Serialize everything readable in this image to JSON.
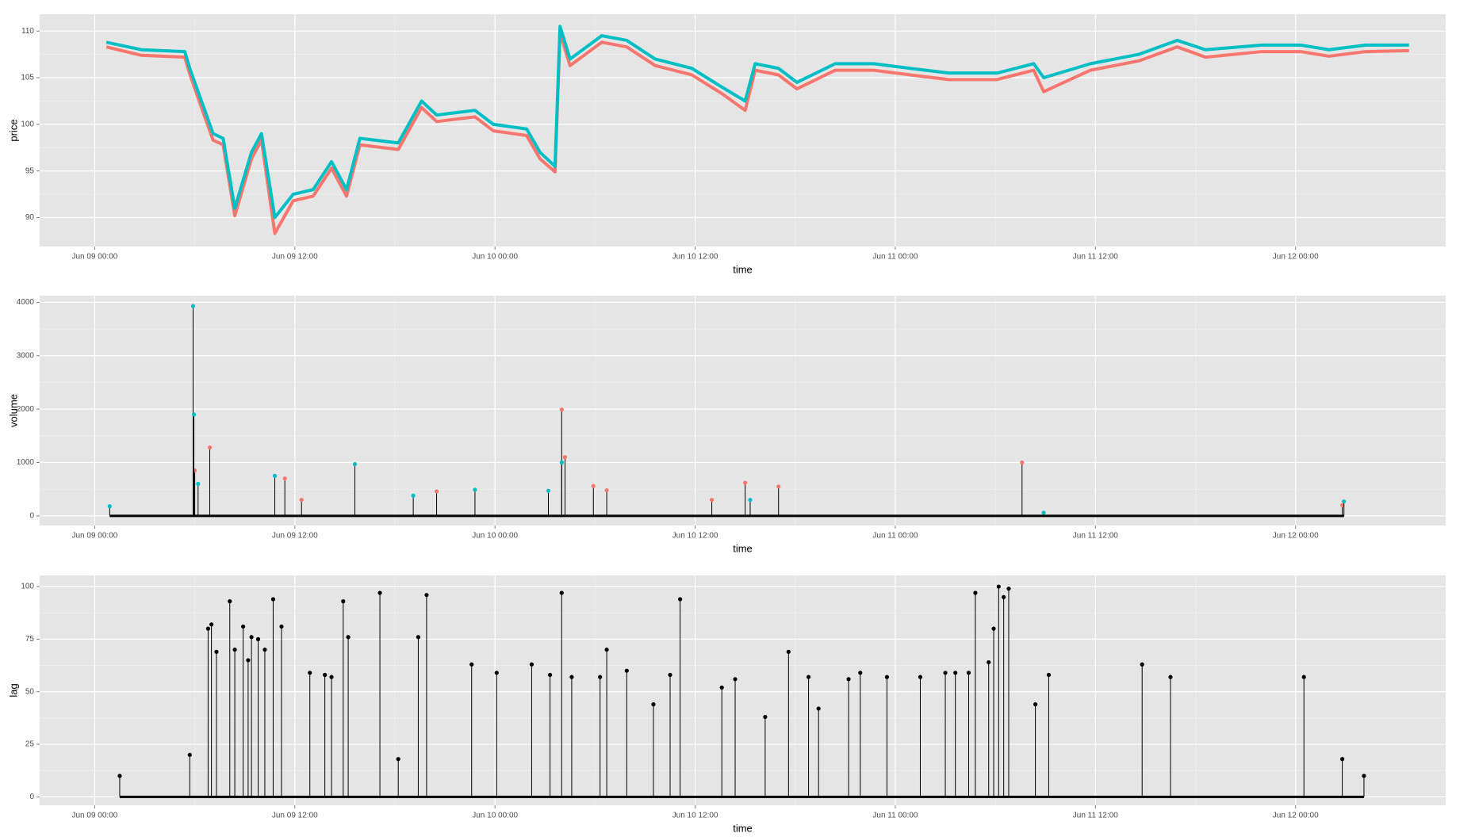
{
  "chart_data": [
    {
      "type": "line",
      "xlabel": "time",
      "ylabel": "price",
      "grid": true,
      "xlim": [
        -3.3,
        81.0
      ],
      "ylim": [
        86.9,
        111.8
      ],
      "xticks": [
        {
          "value": 0,
          "label": "Jun 09 00:00"
        },
        {
          "value": 12,
          "label": "Jun 09 12:00"
        },
        {
          "value": 24,
          "label": "Jun 10 00:00"
        },
        {
          "value": 36,
          "label": "Jun 10 12:00"
        },
        {
          "value": 48,
          "label": "Jun 11 00:00"
        },
        {
          "value": 60,
          "label": "Jun 11 12:00"
        },
        {
          "value": 72,
          "label": "Jun 12 00:00"
        }
      ],
      "yticks": [
        90,
        95,
        100,
        105,
        110
      ],
      "x": [
        0.7,
        2.8,
        5.4,
        5.7,
        6.5,
        7.1,
        7.7,
        8.4,
        9.4,
        10,
        10.8,
        11.9,
        13.1,
        14.2,
        15.1,
        15.9,
        18.2,
        19.6,
        20.5,
        22.8,
        23.9,
        25.9,
        26.7,
        27.6,
        27.9,
        28.5,
        30.4,
        31.9,
        33.6,
        35.8,
        37.6,
        39,
        39.6,
        41,
        42.1,
        44.4,
        46.7,
        48.9,
        51.2,
        54.1,
        56.3,
        56.9,
        59.7,
        62.6,
        64.9,
        66.6,
        70,
        72.3,
        74,
        76.2,
        78.8
      ],
      "series": [
        {
          "color": "#f8766d",
          "values": [
            108.3,
            107.4,
            107.2,
            105.4,
            101.3,
            98.3,
            97.8,
            90.2,
            96.3,
            98.3,
            88.3,
            91.8,
            92.3,
            95.3,
            92.3,
            97.8,
            97.3,
            101.8,
            100.3,
            100.8,
            99.3,
            98.8,
            96.3,
            94.9,
            109.8,
            106.3,
            108.8,
            108.3,
            106.3,
            105.3,
            103.3,
            101.5,
            105.8,
            105.3,
            103.8,
            105.8,
            105.8,
            105.3,
            104.8,
            104.8,
            105.8,
            103.5,
            105.8,
            106.8,
            108.3,
            107.2,
            107.8,
            107.8,
            107.3,
            107.8,
            107.9
          ]
        },
        {
          "color": "#00bfc4",
          "values": [
            108.8,
            108,
            107.8,
            106,
            102,
            99,
            98.5,
            91,
            97,
            99,
            90,
            92.5,
            93,
            96,
            93,
            98.5,
            98,
            102.5,
            101,
            101.5,
            100,
            99.5,
            97,
            95.5,
            110.5,
            107,
            109.5,
            109,
            107,
            106,
            104,
            102.5,
            106.5,
            106,
            104.5,
            106.5,
            106.5,
            106,
            105.5,
            105.5,
            106.5,
            105,
            106.5,
            107.5,
            109,
            108,
            108.5,
            108.5,
            108,
            108.5,
            108.5
          ]
        }
      ]
    },
    {
      "type": "stem",
      "xlabel": "time",
      "ylabel": "volume",
      "grid": true,
      "xlim": [
        -3.3,
        81.0
      ],
      "ylim": [
        -180,
        4125
      ],
      "xticks": [
        {
          "value": 0,
          "label": "Jun 09 00:00"
        },
        {
          "value": 12,
          "label": "Jun 09 12:00"
        },
        {
          "value": 24,
          "label": "Jun 10 00:00"
        },
        {
          "value": 36,
          "label": "Jun 10 12:00"
        },
        {
          "value": 48,
          "label": "Jun 11 00:00"
        },
        {
          "value": 60,
          "label": "Jun 11 12:00"
        },
        {
          "value": 72,
          "label": "Jun 12 00:00"
        }
      ],
      "yticks": [
        0,
        1000,
        2000,
        3000,
        4000
      ],
      "series": [
        {
          "color": "#f8766d",
          "x": [
            6.0,
            6.9,
            11.4,
            12.4,
            20.5,
            28.0,
            28.2,
            29.9,
            30.7,
            37.0,
            39.0,
            41.0,
            55.6,
            74.8
          ],
          "values": [
            850,
            1280,
            700,
            300,
            460,
            1990,
            1100,
            560,
            480,
            300,
            620,
            550,
            1000,
            200
          ]
        },
        {
          "color": "#00bfc4",
          "x": [
            0.9,
            5.9,
            5.95,
            6.2,
            10.8,
            15.6,
            19.1,
            22.8,
            27.2,
            28.0,
            39.3,
            56.9,
            74.9
          ],
          "values": [
            180,
            3930,
            1900,
            600,
            750,
            970,
            380,
            490,
            470,
            1000,
            300,
            60,
            270
          ]
        }
      ]
    },
    {
      "type": "stem",
      "xlabel": "time",
      "ylabel": "lag",
      "grid": true,
      "xlim": [
        -3.3,
        81.0
      ],
      "ylim": [
        -4,
        105.3
      ],
      "xticks": [
        {
          "value": 0,
          "label": "Jun 09 00:00"
        },
        {
          "value": 12,
          "label": "Jun 09 12:00"
        },
        {
          "value": 24,
          "label": "Jun 10 00:00"
        },
        {
          "value": 36,
          "label": "Jun 10 12:00"
        },
        {
          "value": 48,
          "label": "Jun 11 00:00"
        },
        {
          "value": 60,
          "label": "Jun 11 12:00"
        },
        {
          "value": 72,
          "label": "Jun 12 00:00"
        }
      ],
      "yticks": [
        0,
        25,
        50,
        75,
        100
      ],
      "series": [
        {
          "color": "#000000",
          "x": [
            1.5,
            5.7,
            6.8,
            7.0,
            7.3,
            8.1,
            8.4,
            8.9,
            9.2,
            9.4,
            9.8,
            10.2,
            10.7,
            11.2,
            12.9,
            13.8,
            14.2,
            14.9,
            15.2,
            17.1,
            18.2,
            19.4,
            19.9,
            22.6,
            24.1,
            26.2,
            27.3,
            28.0,
            28.6,
            30.3,
            30.7,
            31.9,
            33.5,
            34.5,
            35.1,
            37.6,
            38.4,
            40.2,
            41.6,
            42.8,
            43.4,
            45.2,
            45.9,
            47.5,
            49.5,
            51.0,
            51.6,
            52.4,
            52.8,
            53.6,
            53.9,
            54.2,
            54.5,
            54.8,
            56.4,
            57.2,
            62.8,
            64.5,
            72.5,
            74.8,
            76.1
          ],
          "values": [
            10,
            20,
            80,
            82,
            69,
            93,
            70,
            81,
            65,
            76,
            75,
            70,
            94,
            81,
            59,
            58,
            57,
            93,
            76,
            97,
            18,
            76,
            96,
            63,
            59,
            63,
            58,
            97,
            57,
            57,
            70,
            60,
            44,
            58,
            94,
            52,
            56,
            38,
            69,
            57,
            42,
            56,
            59,
            57,
            57,
            59,
            59,
            59,
            97,
            64,
            80,
            100,
            95,
            99,
            44,
            58,
            63,
            57,
            57,
            18,
            10
          ]
        }
      ]
    }
  ]
}
